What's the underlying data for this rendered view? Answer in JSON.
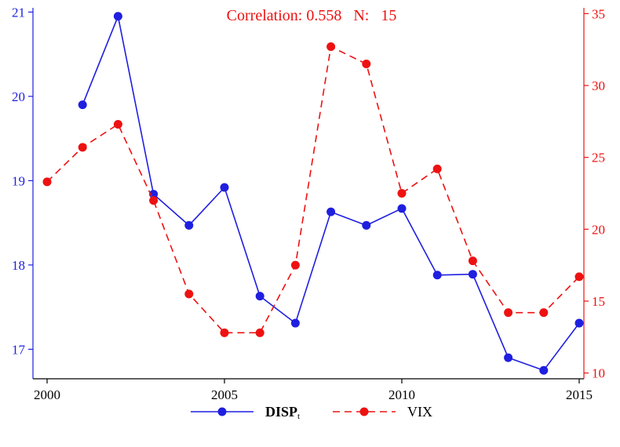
{
  "chart_data": {
    "type": "line",
    "annotation": "Correlation: 0.558   N:   15",
    "x_ticks": [
      "2000",
      "2005",
      "2010",
      "2015"
    ],
    "x_tick_values": [
      2000,
      2005,
      2010,
      2015
    ],
    "xlim": [
      2000,
      2015
    ],
    "left_axis": {
      "ticks": [
        "17",
        "18",
        "19",
        "20",
        "21"
      ],
      "tick_values": [
        17,
        18,
        19,
        20,
        21
      ],
      "ylim": [
        16.65,
        21.05
      ],
      "color": "#1f1fe0"
    },
    "right_axis": {
      "ticks": [
        "10",
        "15",
        "20",
        "25",
        "30",
        "35"
      ],
      "tick_values": [
        10,
        15,
        20,
        25,
        30,
        35
      ],
      "ylim": [
        9.6,
        35.4
      ],
      "color": "#ee1111"
    },
    "legend_placement": "bottom",
    "grid": false,
    "series": [
      {
        "name": "DISP",
        "name_subscript": "t",
        "axis": "left",
        "color": "#1f1fe0",
        "dash": "solid",
        "x": [
          2001,
          2002,
          2003,
          2004,
          2005,
          2006,
          2007,
          2008,
          2009,
          2010,
          2011,
          2012,
          2013,
          2014,
          2015
        ],
        "values": [
          19.9,
          20.95,
          18.84,
          18.47,
          18.92,
          17.63,
          17.31,
          18.63,
          18.47,
          18.67,
          17.88,
          17.89,
          16.9,
          16.75,
          17.31
        ]
      },
      {
        "name": "VIX",
        "axis": "right",
        "color": "#ee1111",
        "dash": "dashed",
        "x": [
          2000,
          2001,
          2002,
          2003,
          2004,
          2005,
          2006,
          2007,
          2008,
          2009,
          2010,
          2011,
          2012,
          2013,
          2014,
          2015
        ],
        "values": [
          23.3,
          25.7,
          27.3,
          22.0,
          15.5,
          12.8,
          12.8,
          17.5,
          32.7,
          31.5,
          22.5,
          24.2,
          17.8,
          14.2,
          14.2,
          16.7
        ]
      }
    ]
  }
}
